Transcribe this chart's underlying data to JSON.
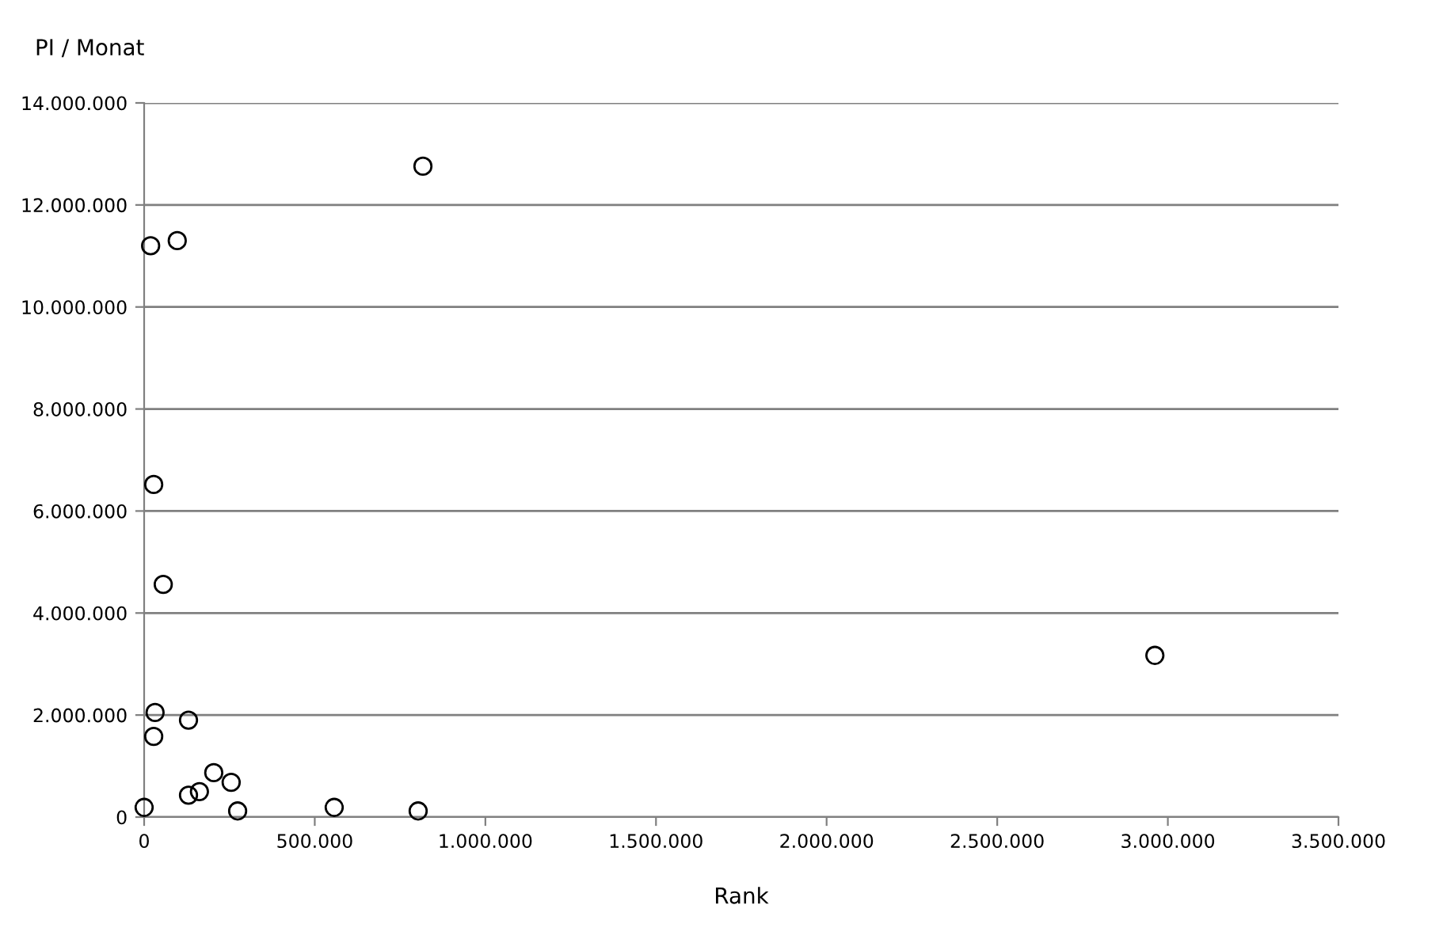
{
  "chart_data": {
    "type": "scatter",
    "ylabel": "PI / Monat",
    "xlabel": "Rank",
    "x": [
      0,
      32000,
      28000,
      130000,
      204000,
      255000,
      130000,
      162000,
      274000,
      557000,
      803000,
      19000,
      97000,
      28000,
      56000,
      817000,
      2962000
    ],
    "series": [
      {
        "color": "#000000",
        "values": [
          190000,
          2050000,
          1580000,
          1900000,
          870000,
          680000,
          430000,
          500000,
          120000,
          190000,
          120000,
          11200000,
          11300000,
          6520000,
          4560000,
          12760000,
          3170000
        ]
      }
    ],
    "xlim": [
      0,
      3500000
    ],
    "xticks": [
      0,
      {
        "value": 500000,
        "label": "500.000"
      },
      {
        "value": 1000000,
        "label": "1.000.000"
      },
      {
        "value": 1500000,
        "label": "1.500.000"
      },
      {
        "value": 2000000,
        "label": "2.000.000"
      },
      {
        "value": 2500000,
        "label": "2.500.000"
      },
      {
        "value": 3000000,
        "label": "3.000.000"
      },
      {
        "value": 3500000,
        "label": "3.500.000"
      }
    ],
    "ylim": [
      0,
      14000000
    ],
    "yticks": [
      0,
      {
        "value": 2000000,
        "label": "2.000.000"
      },
      {
        "value": 4000000,
        "label": "4.000.000"
      },
      {
        "value": 6000000,
        "label": "6.000.000"
      },
      {
        "value": 8000000,
        "label": "8.000.000"
      },
      {
        "value": 10000000,
        "label": "10.000.000"
      },
      {
        "value": 12000000,
        "label": "12.000.000"
      },
      {
        "value": 14000000,
        "label": "14.000.000"
      }
    ],
    "grid": "y",
    "marker": "circle"
  }
}
